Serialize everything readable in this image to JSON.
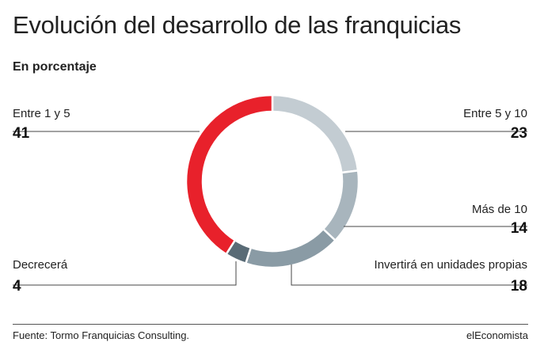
{
  "title": "Evolución del desarrollo de las franquicias",
  "subtitle": "En porcentaje",
  "source": "Fuente: Tormo Franquicias Consulting.",
  "brand": "elEconomista",
  "chart_data": {
    "type": "pie",
    "variant": "donut",
    "unit": "%",
    "categories": [
      "Entre 5 y 10",
      "Más de 10",
      "Invertirá en unidades propias",
      "Decrecerá",
      "Entre 1 y 5"
    ],
    "values": [
      23,
      14,
      18,
      4,
      41
    ],
    "colors": [
      "#c3ccd2",
      "#a8b5bd",
      "#8a9ba5",
      "#596b76",
      "#e8212b"
    ],
    "start_angle": "12 o'clock",
    "direction": "clockwise",
    "legend": "callout labels around the ring"
  }
}
